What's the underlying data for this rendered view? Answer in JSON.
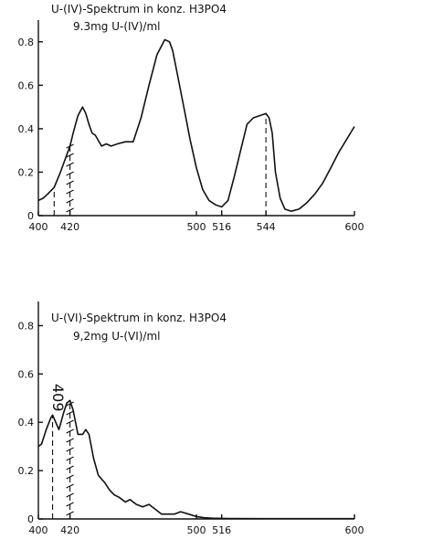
{
  "chart_data": [
    {
      "type": "line",
      "title": "U-(IV)-Spektrum in konz. H3PO4",
      "subtitle": "9.3mg U-(IV)/ml",
      "xlabel": "",
      "ylabel": "",
      "xlim": [
        400,
        600
      ],
      "ylim": [
        0,
        0.9
      ],
      "x_ticks": [
        400,
        420,
        500,
        516,
        544,
        600
      ],
      "y_ticks": [
        0,
        0.2,
        0.4,
        0.6,
        0.8
      ],
      "x_tick_labels": [
        "400",
        "420",
        "500",
        "516",
        "544",
        "600"
      ],
      "y_tick_labels": [
        "0",
        "0.2",
        "0.4",
        "0.6",
        "0.8"
      ],
      "grid": false,
      "series": [
        {
          "x": [
            400,
            403,
            406,
            410,
            414,
            418,
            420,
            422,
            425,
            428,
            430,
            432,
            434,
            436,
            440,
            443,
            446,
            450,
            455,
            460,
            465,
            470,
            475,
            480,
            483,
            485,
            488,
            492,
            496,
            500,
            504,
            508,
            512,
            516,
            520,
            524,
            528,
            532,
            536,
            540,
            544,
            546,
            548,
            550,
            553,
            556,
            560,
            565,
            570,
            575,
            580,
            585,
            590,
            595,
            600
          ],
          "y": [
            0.07,
            0.08,
            0.1,
            0.13,
            0.2,
            0.28,
            0.32,
            0.38,
            0.46,
            0.5,
            0.47,
            0.42,
            0.38,
            0.37,
            0.32,
            0.33,
            0.32,
            0.33,
            0.34,
            0.34,
            0.45,
            0.6,
            0.74,
            0.81,
            0.8,
            0.76,
            0.65,
            0.5,
            0.35,
            0.22,
            0.12,
            0.07,
            0.05,
            0.04,
            0.07,
            0.18,
            0.3,
            0.42,
            0.45,
            0.46,
            0.47,
            0.45,
            0.38,
            0.2,
            0.08,
            0.03,
            0.02,
            0.03,
            0.06,
            0.1,
            0.15,
            0.22,
            0.29,
            0.35,
            0.41
          ]
        }
      ],
      "markers": [
        {
          "x": 410,
          "style": "dashed",
          "y_top": 0.12
        },
        {
          "x": 420,
          "style": "ticked",
          "y_top": 0.33
        },
        {
          "x": 516,
          "style": "dashed",
          "y_top": 0.04
        },
        {
          "x": 544,
          "style": "dashed",
          "y_top": 0.47
        }
      ]
    },
    {
      "type": "line",
      "title": "U-(VI)-Spektrum in konz. H3PO4",
      "subtitle": "9,2mg U-(VI)/ml",
      "annotation": "409",
      "xlabel": "",
      "ylabel": "",
      "xlim": [
        400,
        600
      ],
      "ylim": [
        0,
        0.9
      ],
      "x_ticks": [
        400,
        420,
        500,
        516,
        600
      ],
      "y_ticks": [
        0,
        0.2,
        0.4,
        0.6,
        0.8
      ],
      "x_tick_labels": [
        "400",
        "420",
        "500",
        "516",
        "600"
      ],
      "y_tick_labels": [
        "0",
        "0.2",
        "0.4",
        "0.6",
        "0.8"
      ],
      "grid": false,
      "series": [
        {
          "x": [
            400,
            402,
            405,
            408,
            409,
            411,
            413,
            416,
            418,
            420,
            422,
            425,
            428,
            430,
            432,
            435,
            438,
            442,
            445,
            448,
            451,
            455,
            458,
            462,
            466,
            470,
            474,
            478,
            482,
            486,
            490,
            495,
            500,
            505,
            510,
            520,
            540,
            560,
            580,
            600
          ],
          "y": [
            0.3,
            0.31,
            0.37,
            0.42,
            0.43,
            0.4,
            0.37,
            0.44,
            0.48,
            0.49,
            0.45,
            0.35,
            0.35,
            0.37,
            0.35,
            0.25,
            0.18,
            0.15,
            0.12,
            0.1,
            0.09,
            0.07,
            0.08,
            0.06,
            0.05,
            0.06,
            0.04,
            0.02,
            0.02,
            0.02,
            0.03,
            0.02,
            0.01,
            0.005,
            0.003,
            0.002,
            0.001,
            0.001,
            0.001,
            0.001
          ]
        }
      ],
      "markers": [
        {
          "x": 409,
          "style": "dashed",
          "y_top": 0.43
        },
        {
          "x": 420,
          "style": "ticked",
          "y_top": 0.49
        }
      ]
    }
  ]
}
